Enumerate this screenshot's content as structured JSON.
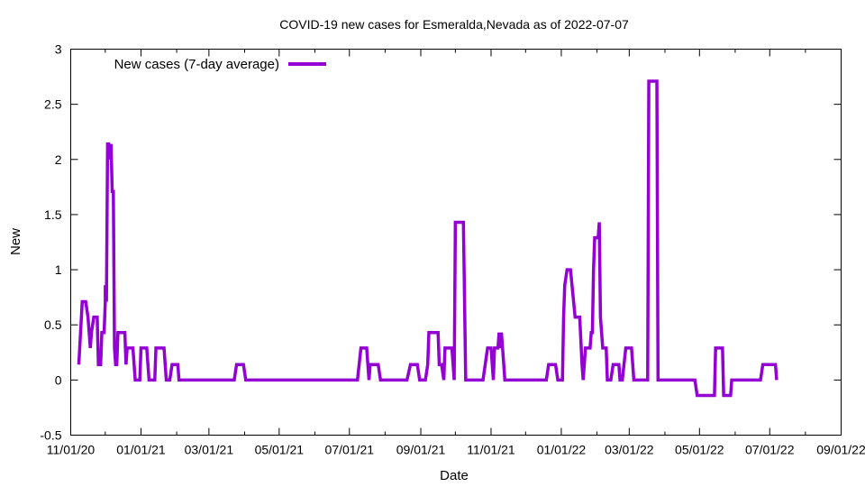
{
  "chart_data": {
    "type": "line",
    "title": "COVID-19 new cases for Esmeralda,Nevada as of 2022-07-07",
    "xlabel": "Date",
    "ylabel": "New",
    "xlim": [
      "2020-11-01",
      "2022-09-01"
    ],
    "ylim": [
      -0.5,
      3
    ],
    "x_ticks": [
      "11/01/20",
      "01/01/21",
      "03/01/21",
      "05/01/21",
      "07/01/21",
      "09/01/21",
      "11/01/21",
      "01/01/22",
      "03/01/22",
      "05/01/22",
      "07/01/22",
      "09/01/22"
    ],
    "y_ticks": [
      "-0.5",
      "0",
      "0.5",
      "1",
      "1.5",
      "2",
      "2.5",
      "3"
    ],
    "grid": false,
    "legend_position": "top-left",
    "series": [
      {
        "name": "New cases (7-day average)",
        "color": "#9400d3",
        "points": [
          [
            "2020-11-08",
            0.14
          ],
          [
            "2020-11-11",
            0.71
          ],
          [
            "2020-11-14",
            0.71
          ],
          [
            "2020-11-16",
            0.57
          ],
          [
            "2020-11-18",
            0.29
          ],
          [
            "2020-11-19",
            0.43
          ],
          [
            "2020-11-21",
            0.57
          ],
          [
            "2020-11-24",
            0.57
          ],
          [
            "2020-11-25",
            0.14
          ],
          [
            "2020-11-27",
            0.14
          ],
          [
            "2020-11-28",
            0.43
          ],
          [
            "2020-11-30",
            0.43
          ],
          [
            "2020-12-01",
            0.71
          ],
          [
            "2020-12-01",
            0.86
          ],
          [
            "2020-12-02",
            0.71
          ],
          [
            "2020-12-03",
            2.14
          ],
          [
            "2020-12-04",
            2.14
          ],
          [
            "2020-12-05",
            2.0
          ],
          [
            "2020-12-06",
            2.14
          ],
          [
            "2020-12-07",
            1.71
          ],
          [
            "2020-12-08",
            1.71
          ],
          [
            "2020-12-09",
            0.29
          ],
          [
            "2020-12-10",
            0.14
          ],
          [
            "2020-12-11",
            0.14
          ],
          [
            "2020-12-12",
            0.43
          ],
          [
            "2020-12-18",
            0.43
          ],
          [
            "2020-12-19",
            0.14
          ],
          [
            "2020-12-20",
            0.29
          ],
          [
            "2020-12-25",
            0.29
          ],
          [
            "2020-12-27",
            0.0
          ],
          [
            "2020-12-31",
            0.0
          ],
          [
            "2021-01-01",
            0.29
          ],
          [
            "2021-01-06",
            0.29
          ],
          [
            "2021-01-08",
            0.0
          ],
          [
            "2021-01-13",
            0.0
          ],
          [
            "2021-01-14",
            0.29
          ],
          [
            "2021-01-21",
            0.29
          ],
          [
            "2021-01-23",
            0.0
          ],
          [
            "2021-01-26",
            0.0
          ],
          [
            "2021-01-28",
            0.14
          ],
          [
            "2021-02-02",
            0.14
          ],
          [
            "2021-02-03",
            0.0
          ],
          [
            "2021-03-23",
            0.0
          ],
          [
            "2021-03-25",
            0.14
          ],
          [
            "2021-03-31",
            0.14
          ],
          [
            "2021-04-02",
            0.0
          ],
          [
            "2021-07-08",
            0.0
          ],
          [
            "2021-07-11",
            0.29
          ],
          [
            "2021-07-16",
            0.29
          ],
          [
            "2021-07-18",
            0.0
          ],
          [
            "2021-07-19",
            0.14
          ],
          [
            "2021-07-26",
            0.14
          ],
          [
            "2021-07-28",
            0.0
          ],
          [
            "2021-08-20",
            0.0
          ],
          [
            "2021-08-23",
            0.14
          ],
          [
            "2021-08-29",
            0.14
          ],
          [
            "2021-08-31",
            0.0
          ],
          [
            "2021-09-05",
            0.0
          ],
          [
            "2021-09-07",
            0.14
          ],
          [
            "2021-09-08",
            0.43
          ],
          [
            "2021-09-16",
            0.43
          ],
          [
            "2021-09-17",
            0.14
          ],
          [
            "2021-09-19",
            0.14
          ],
          [
            "2021-09-21",
            0.0
          ],
          [
            "2021-09-22",
            0.29
          ],
          [
            "2021-09-28",
            0.29
          ],
          [
            "2021-09-30",
            0.0
          ],
          [
            "2021-10-01",
            1.43
          ],
          [
            "2021-10-08",
            1.43
          ],
          [
            "2021-10-10",
            0.0
          ],
          [
            "2021-10-25",
            0.0
          ],
          [
            "2021-10-29",
            0.29
          ],
          [
            "2021-11-01",
            0.29
          ],
          [
            "2021-11-03",
            0.0
          ],
          [
            "2021-11-04",
            0.29
          ],
          [
            "2021-11-07",
            0.29
          ],
          [
            "2021-11-08",
            0.43
          ],
          [
            "2021-11-09",
            0.29
          ],
          [
            "2021-11-10",
            0.43
          ],
          [
            "2021-11-11",
            0.29
          ],
          [
            "2021-11-13",
            0.0
          ],
          [
            "2021-12-19",
            0.0
          ],
          [
            "2021-12-21",
            0.14
          ],
          [
            "2021-12-27",
            0.14
          ],
          [
            "2021-12-29",
            0.0
          ],
          [
            "2022-01-02",
            0.0
          ],
          [
            "2022-01-03",
            0.57
          ],
          [
            "2022-01-04",
            0.86
          ],
          [
            "2022-01-06",
            1.0
          ],
          [
            "2022-01-09",
            1.0
          ],
          [
            "2022-01-13",
            0.57
          ],
          [
            "2022-01-17",
            0.57
          ],
          [
            "2022-01-19",
            0.14
          ],
          [
            "2022-01-20",
            0.0
          ],
          [
            "2022-01-22",
            0.29
          ],
          [
            "2022-01-26",
            0.29
          ],
          [
            "2022-01-27",
            0.43
          ],
          [
            "2022-01-28",
            0.43
          ],
          [
            "2022-01-29",
            1.0
          ],
          [
            "2022-01-30",
            1.29
          ],
          [
            "2022-02-02",
            1.29
          ],
          [
            "2022-02-03",
            1.43
          ],
          [
            "2022-02-04",
            0.57
          ],
          [
            "2022-02-06",
            0.29
          ],
          [
            "2022-02-09",
            0.29
          ],
          [
            "2022-02-10",
            0.0
          ],
          [
            "2022-02-13",
            0.0
          ],
          [
            "2022-02-15",
            0.14
          ],
          [
            "2022-02-20",
            0.14
          ],
          [
            "2022-02-21",
            0.0
          ],
          [
            "2022-02-23",
            0.0
          ],
          [
            "2022-02-26",
            0.29
          ],
          [
            "2022-03-03",
            0.29
          ],
          [
            "2022-03-05",
            0.0
          ],
          [
            "2022-03-17",
            0.0
          ],
          [
            "2022-03-18",
            2.71
          ],
          [
            "2022-03-25",
            2.71
          ],
          [
            "2022-03-26",
            0.0
          ],
          [
            "2022-04-27",
            0.0
          ],
          [
            "2022-04-29",
            -0.14
          ],
          [
            "2022-05-14",
            -0.14
          ],
          [
            "2022-05-15",
            0.29
          ],
          [
            "2022-05-21",
            0.29
          ],
          [
            "2022-05-22",
            -0.14
          ],
          [
            "2022-05-28",
            -0.14
          ],
          [
            "2022-05-29",
            0.0
          ],
          [
            "2022-06-23",
            0.0
          ],
          [
            "2022-06-25",
            0.14
          ],
          [
            "2022-07-06",
            0.14
          ],
          [
            "2022-07-07",
            0.0
          ]
        ]
      }
    ]
  }
}
